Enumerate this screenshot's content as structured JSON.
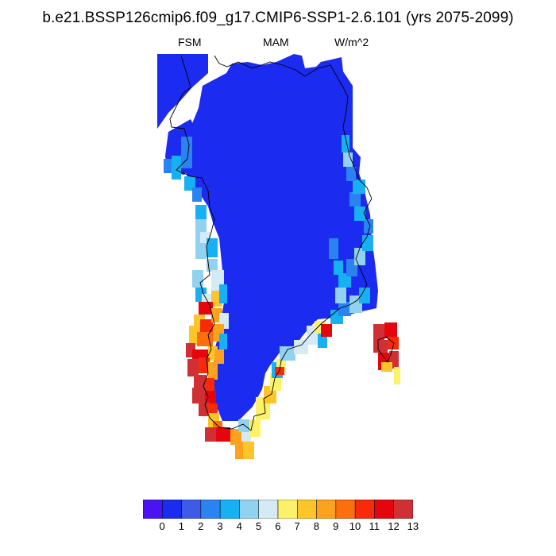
{
  "title": "b.e21.BSSP126cmip6.f09_g17.CMIP6-SSP1-2.6.101 (yrs 2075-2099)",
  "subtitles": {
    "left": "FSM",
    "center": "MAM",
    "right": "W/m^2"
  },
  "colorbar": {
    "labels": [
      "0",
      "1",
      "2",
      "3",
      "4",
      "5",
      "6",
      "7",
      "8",
      "9",
      "10",
      "11",
      "12",
      "13"
    ],
    "colors": [
      "#4b13f2",
      "#1b2bf0",
      "#3d5be8",
      "#2b83f2",
      "#17b0f2",
      "#90d2f0",
      "#d4eaf5",
      "#fdf16a",
      "#fdc52a",
      "#fda21e",
      "#fb6f0e",
      "#f72a0a",
      "#e4060c",
      "#d03033"
    ]
  },
  "colors": {
    "landmass": "#1b2bf0",
    "coastline": "#000000"
  }
}
